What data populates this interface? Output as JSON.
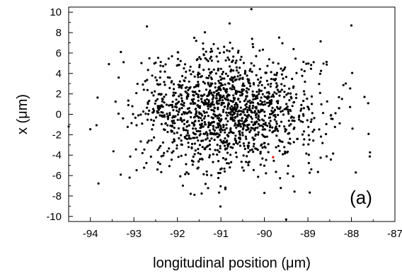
{
  "chart_data": {
    "type": "scatter",
    "xlabel": "longitudinal position (μm)",
    "ylabel": "x (μm)",
    "annotation": "(a)",
    "xlim": [
      -94.5,
      -87
    ],
    "ylim": [
      -10.5,
      10.5
    ],
    "x_ticks": [
      -94,
      -93,
      -92,
      -91,
      -90,
      -89,
      -88,
      -87
    ],
    "y_ticks": [
      -10,
      -8,
      -6,
      -4,
      -2,
      0,
      2,
      4,
      6,
      8,
      10
    ],
    "grid": false,
    "legend": "none",
    "colors": {
      "points": "#000000",
      "highlight": "#ff0000"
    },
    "distribution": {
      "center_x": -90.85,
      "center_y": 0.2,
      "sigma_x": 1.05,
      "sigma_y": 2.85,
      "count": 1450,
      "seed": 7
    },
    "notable_points": [
      {
        "x": -90.3,
        "y": 10.3,
        "color": "#000000"
      },
      {
        "x": -89.5,
        "y": -10.3,
        "color": "#000000"
      },
      {
        "x": -88.0,
        "y": 8.7,
        "color": "#000000"
      },
      {
        "x": -93.1,
        "y": -6.2,
        "color": "#000000"
      },
      {
        "x": -94.5,
        "y": -1.2,
        "color": "#000000"
      },
      {
        "x": -92.7,
        "y": 8.6,
        "color": "#000000"
      },
      {
        "x": -90.0,
        "y": -7.7,
        "color": "#000000"
      },
      {
        "x": -87.9,
        "y": -5.7,
        "color": "#000000"
      },
      {
        "x": -87.7,
        "y": 1.7,
        "color": "#000000"
      },
      {
        "x": -93.3,
        "y": 6.1,
        "color": "#000000"
      },
      {
        "x": -89.8,
        "y": -4.2,
        "color": "#ff0000"
      }
    ]
  }
}
